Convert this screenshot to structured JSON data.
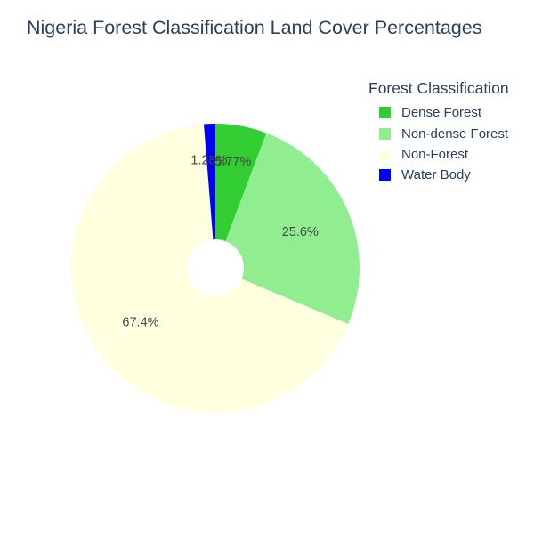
{
  "chart_data": {
    "type": "pie",
    "title": "Nigeria Forest Classification Land Cover Percentages",
    "legend_title": "Forest Classification",
    "legend_position": "top-right",
    "hole": true,
    "categories": [
      "Dense Forest",
      "Non-dense Forest",
      "Non-Forest",
      "Water Body"
    ],
    "values": [
      5.77,
      25.6,
      67.4,
      1.28
    ],
    "labels": [
      "5.77%",
      "25.6%",
      "67.4%",
      "1.28%"
    ],
    "colors": [
      "#32CD32",
      "#90EE90",
      "#FFFFE0",
      "#0000FF"
    ]
  }
}
